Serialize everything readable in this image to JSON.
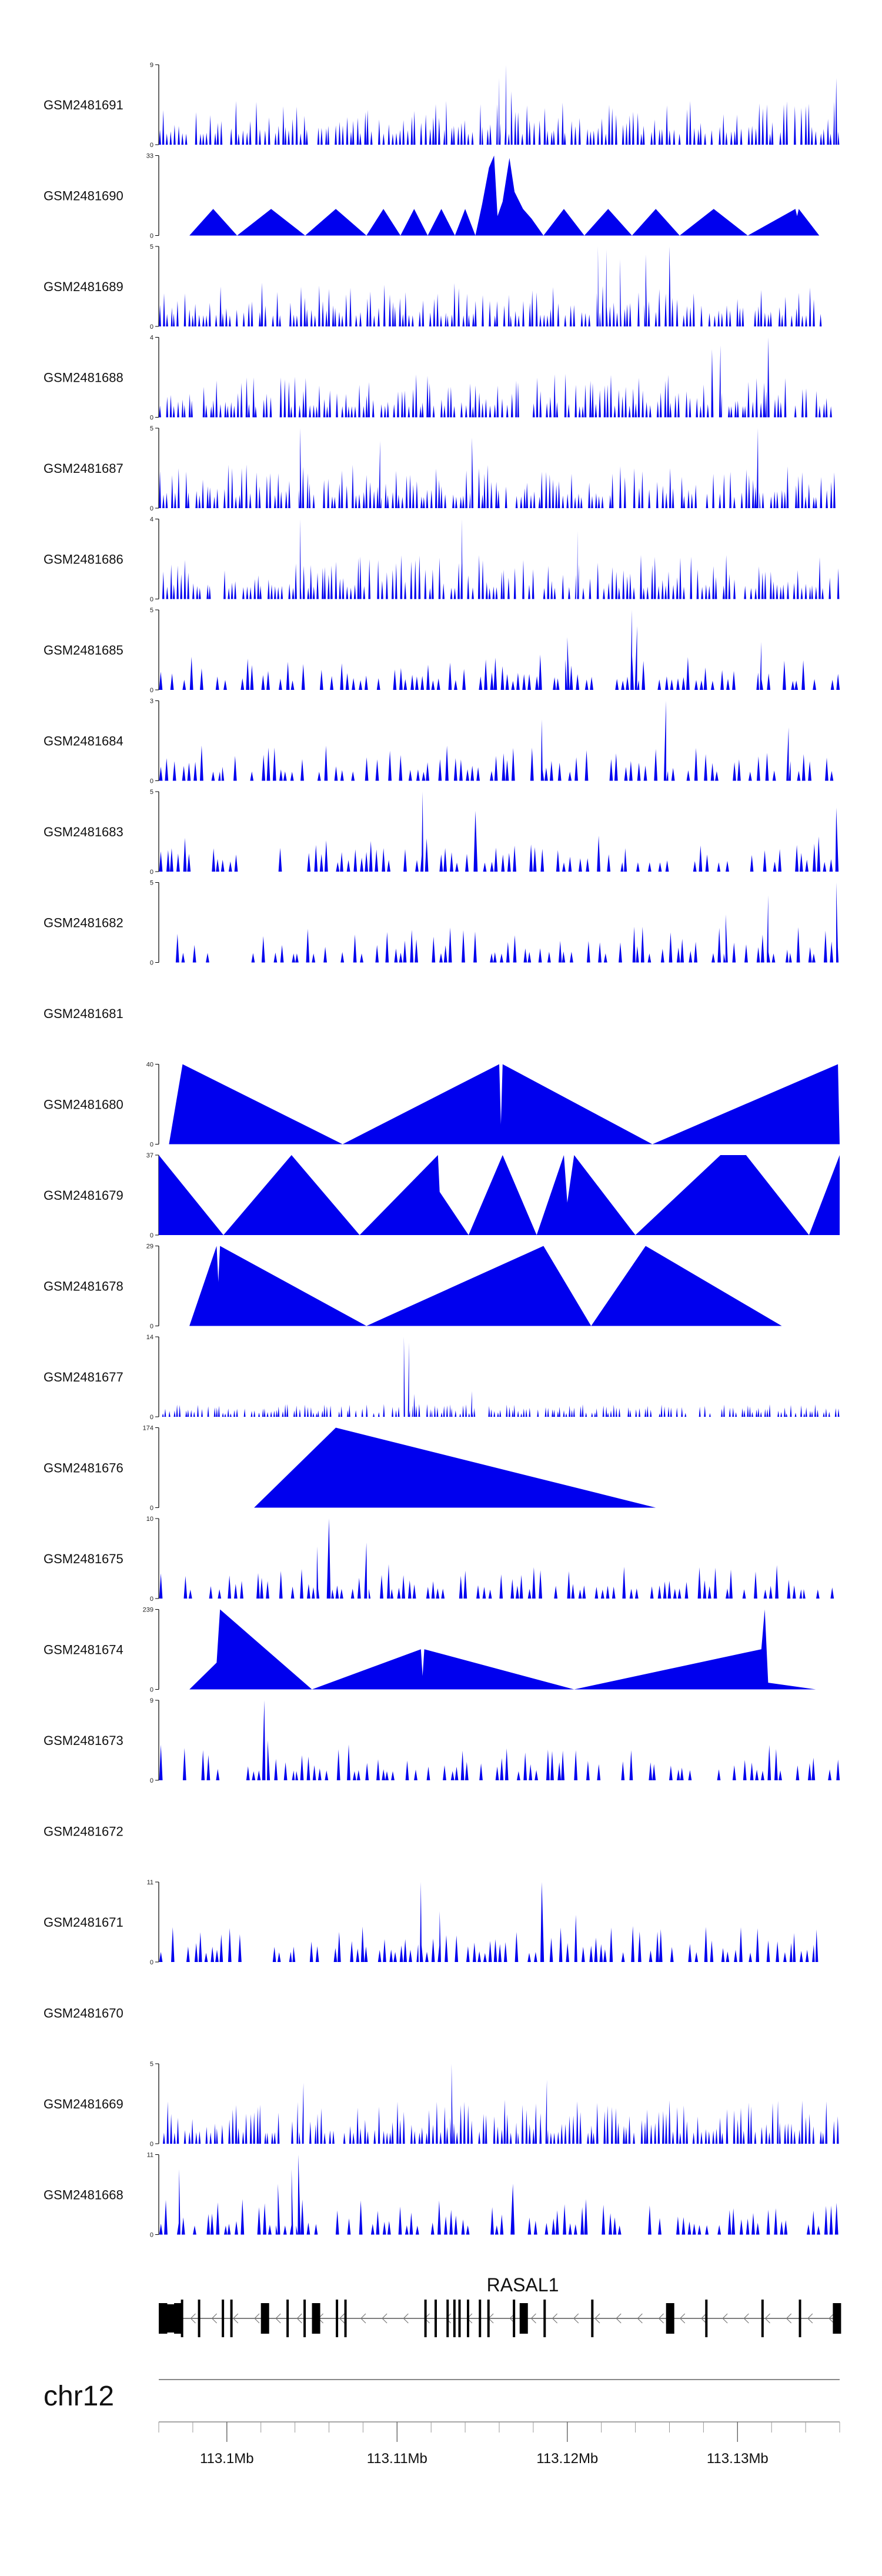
{
  "chart_data": {
    "type": "area",
    "fill_color": "#0000ee",
    "axis_color": "#000000",
    "x_range": [
      113096000,
      113136000
    ],
    "tracks": [
      {
        "label": "GSM2481691",
        "ymax": "9",
        "ylim": [
          0,
          9
        ],
        "kind": "dense",
        "seed": 11,
        "x_start": 113096000,
        "x_end": 113136000,
        "peaks": [
          {
            "x": 113116000,
            "y": 7.5
          },
          {
            "x": 113116400,
            "y": 9
          },
          {
            "x": 113116700,
            "y": 6
          },
          {
            "x": 113135800,
            "y": 7.5
          }
        ]
      },
      {
        "label": "GSM2481690",
        "ymax": "33",
        "ylim": [
          0,
          33
        ],
        "kind": "points",
        "x_start": 113097800,
        "x_end": 113136200,
        "points": [
          [
            113097800,
            0
          ],
          [
            113099200,
            11
          ],
          [
            113100600,
            0
          ],
          [
            113102600,
            11
          ],
          [
            113104600,
            0
          ],
          [
            113106400,
            11
          ],
          [
            113108200,
            0
          ],
          [
            113109200,
            11
          ],
          [
            113110200,
            0
          ],
          [
            113111000,
            11
          ],
          [
            113111800,
            0
          ],
          [
            113112600,
            11
          ],
          [
            113113400,
            0
          ],
          [
            113114000,
            11
          ],
          [
            113114600,
            0
          ],
          [
            113115000,
            13
          ],
          [
            113115400,
            28
          ],
          [
            113115700,
            33
          ],
          [
            113115900,
            8
          ],
          [
            113116200,
            14
          ],
          [
            113116600,
            32
          ],
          [
            113116900,
            18
          ],
          [
            113117400,
            11
          ],
          [
            113117900,
            7
          ],
          [
            113118600,
            0
          ],
          [
            113119800,
            11
          ],
          [
            113121000,
            0
          ],
          [
            113122400,
            11
          ],
          [
            113123800,
            0
          ],
          [
            113125200,
            11
          ],
          [
            113126600,
            0
          ],
          [
            113128600,
            11
          ],
          [
            113130600,
            0
          ],
          [
            113133400,
            11
          ],
          [
            113133500,
            8
          ],
          [
            113133600,
            11
          ],
          [
            113134800,
            0
          ]
        ]
      },
      {
        "label": "GSM2481689",
        "ymax": "5",
        "ylim": [
          0,
          5
        ],
        "kind": "dense",
        "seed": 23,
        "x_start": 113096000,
        "x_end": 113135200,
        "peaks": [
          {
            "x": 113121800,
            "y": 5
          },
          {
            "x": 113122300,
            "y": 4.8
          },
          {
            "x": 113124600,
            "y": 4.5
          },
          {
            "x": 113126000,
            "y": 5
          },
          {
            "x": 113123100,
            "y": 4.2
          }
        ]
      },
      {
        "label": "GSM2481688",
        "ymax": "4",
        "ylim": [
          0,
          4
        ],
        "kind": "dense",
        "seed": 37,
        "x_start": 113096000,
        "x_end": 113135600,
        "peaks": [
          {
            "x": 113131800,
            "y": 4
          },
          {
            "x": 113129000,
            "y": 3.6
          },
          {
            "x": 113128500,
            "y": 3.4
          }
        ]
      },
      {
        "label": "GSM2481687",
        "ymax": "5",
        "ylim": [
          0,
          5
        ],
        "kind": "dense",
        "seed": 41,
        "x_start": 113096000,
        "x_end": 113135800,
        "peaks": [
          {
            "x": 113104300,
            "y": 5
          },
          {
            "x": 113131200,
            "y": 5
          },
          {
            "x": 113114400,
            "y": 4.4
          },
          {
            "x": 113109000,
            "y": 4.2
          }
        ]
      },
      {
        "label": "GSM2481686",
        "ymax": "4",
        "ylim": [
          0,
          4
        ],
        "kind": "dense",
        "seed": 53,
        "x_start": 113096000,
        "x_end": 113136000,
        "peaks": [
          {
            "x": 113104300,
            "y": 4
          },
          {
            "x": 113113800,
            "y": 4
          },
          {
            "x": 113120600,
            "y": 3.4
          }
        ]
      },
      {
        "label": "GSM2481685",
        "ymax": "5",
        "ylim": [
          0,
          5
        ],
        "kind": "sparse",
        "seed": 61,
        "x_start": 113096000,
        "x_end": 113136000,
        "peaks": [
          {
            "x": 113123800,
            "y": 5
          },
          {
            "x": 113124100,
            "y": 4
          },
          {
            "x": 113120000,
            "y": 3.3
          },
          {
            "x": 113131400,
            "y": 3
          }
        ]
      },
      {
        "label": "GSM2481684",
        "ymax": "3",
        "ylim": [
          0,
          3
        ],
        "kind": "sparse",
        "seed": 71,
        "x_start": 113096000,
        "x_end": 113136000,
        "peaks": [
          {
            "x": 113125800,
            "y": 3
          },
          {
            "x": 113118500,
            "y": 2.3
          },
          {
            "x": 113133000,
            "y": 2
          }
        ]
      },
      {
        "label": "GSM2481683",
        "ymax": "5",
        "ylim": [
          0,
          5
        ],
        "kind": "sparse",
        "seed": 83,
        "x_start": 113096000,
        "x_end": 113136000,
        "peaks": [
          {
            "x": 113111500,
            "y": 5
          },
          {
            "x": 113135800,
            "y": 4
          },
          {
            "x": 113114600,
            "y": 3.8
          }
        ]
      },
      {
        "label": "GSM2481682",
        "ymax": "5",
        "ylim": [
          0,
          5
        ],
        "kind": "sparse",
        "seed": 97,
        "x_start": 113096000,
        "x_end": 113136000,
        "peaks": [
          {
            "x": 113131800,
            "y": 4.2
          },
          {
            "x": 113135800,
            "y": 5
          },
          {
            "x": 113129300,
            "y": 3
          }
        ]
      },
      {
        "label": "GSM2481681",
        "ymax": "",
        "ylim": [
          0,
          1
        ],
        "kind": "empty"
      },
      {
        "label": "GSM2481680",
        "ymax": "40",
        "ylim": [
          0,
          40
        ],
        "kind": "points",
        "x_start": 113096600,
        "x_end": 113136000,
        "points": [
          [
            113096600,
            0
          ],
          [
            113097400,
            40
          ],
          [
            113106800,
            0
          ],
          [
            113116000,
            40
          ],
          [
            113116100,
            10
          ],
          [
            113116200,
            40
          ],
          [
            113125000,
            0
          ],
          [
            113135900,
            40
          ],
          [
            113136000,
            0
          ]
        ]
      },
      {
        "label": "GSM2481679",
        "ymax": "37",
        "ylim": [
          0,
          37
        ],
        "kind": "points",
        "x_start": 113096000,
        "x_end": 113136000,
        "points": [
          [
            113096000,
            37
          ],
          [
            113099800,
            0
          ],
          [
            113103800,
            37
          ],
          [
            113107800,
            0
          ],
          [
            113112400,
            37
          ],
          [
            113112500,
            20
          ],
          [
            113114200,
            0
          ],
          [
            113116200,
            37
          ],
          [
            113118200,
            0
          ],
          [
            113119800,
            37
          ],
          [
            113120000,
            15
          ],
          [
            113120400,
            37
          ],
          [
            113124000,
            0
          ],
          [
            113129000,
            37
          ],
          [
            113130500,
            37
          ],
          [
            113134200,
            0
          ],
          [
            113136000,
            37
          ]
        ]
      },
      {
        "label": "GSM2481678",
        "ymax": "29",
        "ylim": [
          0,
          29
        ],
        "kind": "points",
        "x_start": 113097800,
        "x_end": 113132600,
        "points": [
          [
            113097800,
            0
          ],
          [
            113099400,
            29
          ],
          [
            113099500,
            16
          ],
          [
            113099600,
            29
          ],
          [
            113108200,
            0
          ],
          [
            113118600,
            29
          ],
          [
            113121400,
            0
          ],
          [
            113124600,
            29
          ],
          [
            113132600,
            0
          ]
        ]
      },
      {
        "label": "GSM2481677",
        "ymax": "14",
        "ylim": [
          0,
          14
        ],
        "kind": "lowpeak",
        "seed": 109,
        "x_start": 113096000,
        "x_end": 113136000,
        "peaks": [
          {
            "x": 113110400,
            "y": 14
          },
          {
            "x": 113110700,
            "y": 13
          },
          {
            "x": 113111000,
            "y": 4
          },
          {
            "x": 113114400,
            "y": 4.5
          }
        ]
      },
      {
        "label": "GSM2481676",
        "ymax": "174",
        "ylim": [
          0,
          174
        ],
        "kind": "points",
        "x_start": 113101600,
        "x_end": 113125200,
        "points": [
          [
            113101600,
            0
          ],
          [
            113106400,
            174
          ],
          [
            113125200,
            0
          ]
        ]
      },
      {
        "label": "GSM2481675",
        "ymax": "10",
        "ylim": [
          0,
          10
        ],
        "kind": "sparse",
        "seed": 127,
        "x_start": 113096000,
        "x_end": 113135800,
        "peaks": [
          {
            "x": 113106000,
            "y": 10
          },
          {
            "x": 113105300,
            "y": 6.5
          },
          {
            "x": 113108200,
            "y": 7
          }
        ]
      },
      {
        "label": "GSM2481674",
        "ymax": "239",
        "ylim": [
          0,
          239
        ],
        "kind": "points",
        "x_start": 113097800,
        "x_end": 113134600,
        "points": [
          [
            113097800,
            0
          ],
          [
            113099400,
            80
          ],
          [
            113099600,
            239
          ],
          [
            113105000,
            0
          ],
          [
            113111400,
            120
          ],
          [
            113111500,
            40
          ],
          [
            113111600,
            120
          ],
          [
            113120400,
            0
          ],
          [
            113131400,
            120
          ],
          [
            113131600,
            239
          ],
          [
            113131800,
            20
          ],
          [
            113134600,
            0
          ]
        ]
      },
      {
        "label": "GSM2481673",
        "ymax": "9",
        "ylim": [
          0,
          9
        ],
        "kind": "sparse",
        "seed": 139,
        "x_start": 113096000,
        "x_end": 113136000,
        "peaks": [
          {
            "x": 113102200,
            "y": 9
          },
          {
            "x": 113102400,
            "y": 4.5
          }
        ]
      },
      {
        "label": "GSM2481672",
        "ymax": "",
        "ylim": [
          0,
          1
        ],
        "kind": "empty"
      },
      {
        "label": "GSM2481671",
        "ymax": "11",
        "ylim": [
          0,
          11
        ],
        "kind": "sparse",
        "seed": 151,
        "x_start": 113096000,
        "x_end": 113135200,
        "peaks": [
          {
            "x": 113111400,
            "y": 11
          },
          {
            "x": 113118500,
            "y": 11
          },
          {
            "x": 113112500,
            "y": 7
          },
          {
            "x": 113120500,
            "y": 6.5
          }
        ]
      },
      {
        "label": "GSM2481670",
        "ymax": "",
        "ylim": [
          0,
          1
        ],
        "kind": "empty"
      },
      {
        "label": "GSM2481669",
        "ymax": "5",
        "ylim": [
          0,
          5
        ],
        "kind": "dense",
        "seed": 163,
        "x_start": 113096000,
        "x_end": 113136000,
        "peaks": [
          {
            "x": 113113200,
            "y": 5
          },
          {
            "x": 113118800,
            "y": 4
          },
          {
            "x": 113104500,
            "y": 3.8
          }
        ]
      },
      {
        "label": "GSM2481668",
        "ymax": "11",
        "ylim": [
          0,
          11
        ],
        "kind": "sparse",
        "seed": 173,
        "x_start": 113096000,
        "x_end": 113136000,
        "peaks": [
          {
            "x": 113104200,
            "y": 11
          },
          {
            "x": 113103800,
            "y": 9
          },
          {
            "x": 113097200,
            "y": 9
          },
          {
            "x": 113103000,
            "y": 7
          },
          {
            "x": 113116800,
            "y": 7
          }
        ]
      }
    ],
    "gene": {
      "name": "RASAL1",
      "strand": "-",
      "start": 113096000,
      "end": 113136000,
      "exons": [
        [
          113096000,
          113096500,
          "thick"
        ],
        [
          113096900,
          113097000,
          "thick"
        ],
        [
          113097300,
          113097400,
          "thin"
        ],
        [
          113098300,
          113098400,
          "thin"
        ],
        [
          113099700,
          113099800,
          "thin"
        ],
        [
          113100200,
          113100300,
          "thin"
        ],
        [
          113102000,
          113102200,
          "thick"
        ],
        [
          113103500,
          113103600,
          "thin"
        ],
        [
          113104500,
          113104600,
          "thin"
        ],
        [
          113105000,
          113105200,
          "thick"
        ],
        [
          113106400,
          113106500,
          "thin"
        ],
        [
          113106900,
          113107000,
          "thin"
        ],
        [
          113111600,
          113111700,
          "thin"
        ],
        [
          113112200,
          113112300,
          "thin"
        ],
        [
          113112900,
          113113000,
          "thin"
        ],
        [
          113113300,
          113113400,
          "thin"
        ],
        [
          113113600,
          113113700,
          "thin"
        ],
        [
          113114100,
          113114200,
          "thin"
        ],
        [
          113114800,
          113114900,
          "thin"
        ],
        [
          113115300,
          113115400,
          "thin"
        ],
        [
          113116800,
          113116900,
          "thin"
        ],
        [
          113117200,
          113117300,
          "thick"
        ],
        [
          113118600,
          113118700,
          "thin"
        ],
        [
          113121400,
          113121500,
          "thin"
        ],
        [
          113125800,
          113126000,
          "thick"
        ],
        [
          113128100,
          113128200,
          "thin"
        ],
        [
          113131400,
          113131500,
          "thin"
        ],
        [
          113133600,
          113133700,
          "thin"
        ],
        [
          113135600,
          113135800,
          "thick"
        ]
      ]
    },
    "chromosome": "chr12",
    "x_ticks": [
      {
        "value": 113100000,
        "label": "113.1Mb"
      },
      {
        "value": 113110000,
        "label": "113.11Mb"
      },
      {
        "value": 113120000,
        "label": "113.12Mb"
      },
      {
        "value": 113130000,
        "label": "113.13Mb"
      }
    ],
    "minor_tick_step": 2000
  }
}
